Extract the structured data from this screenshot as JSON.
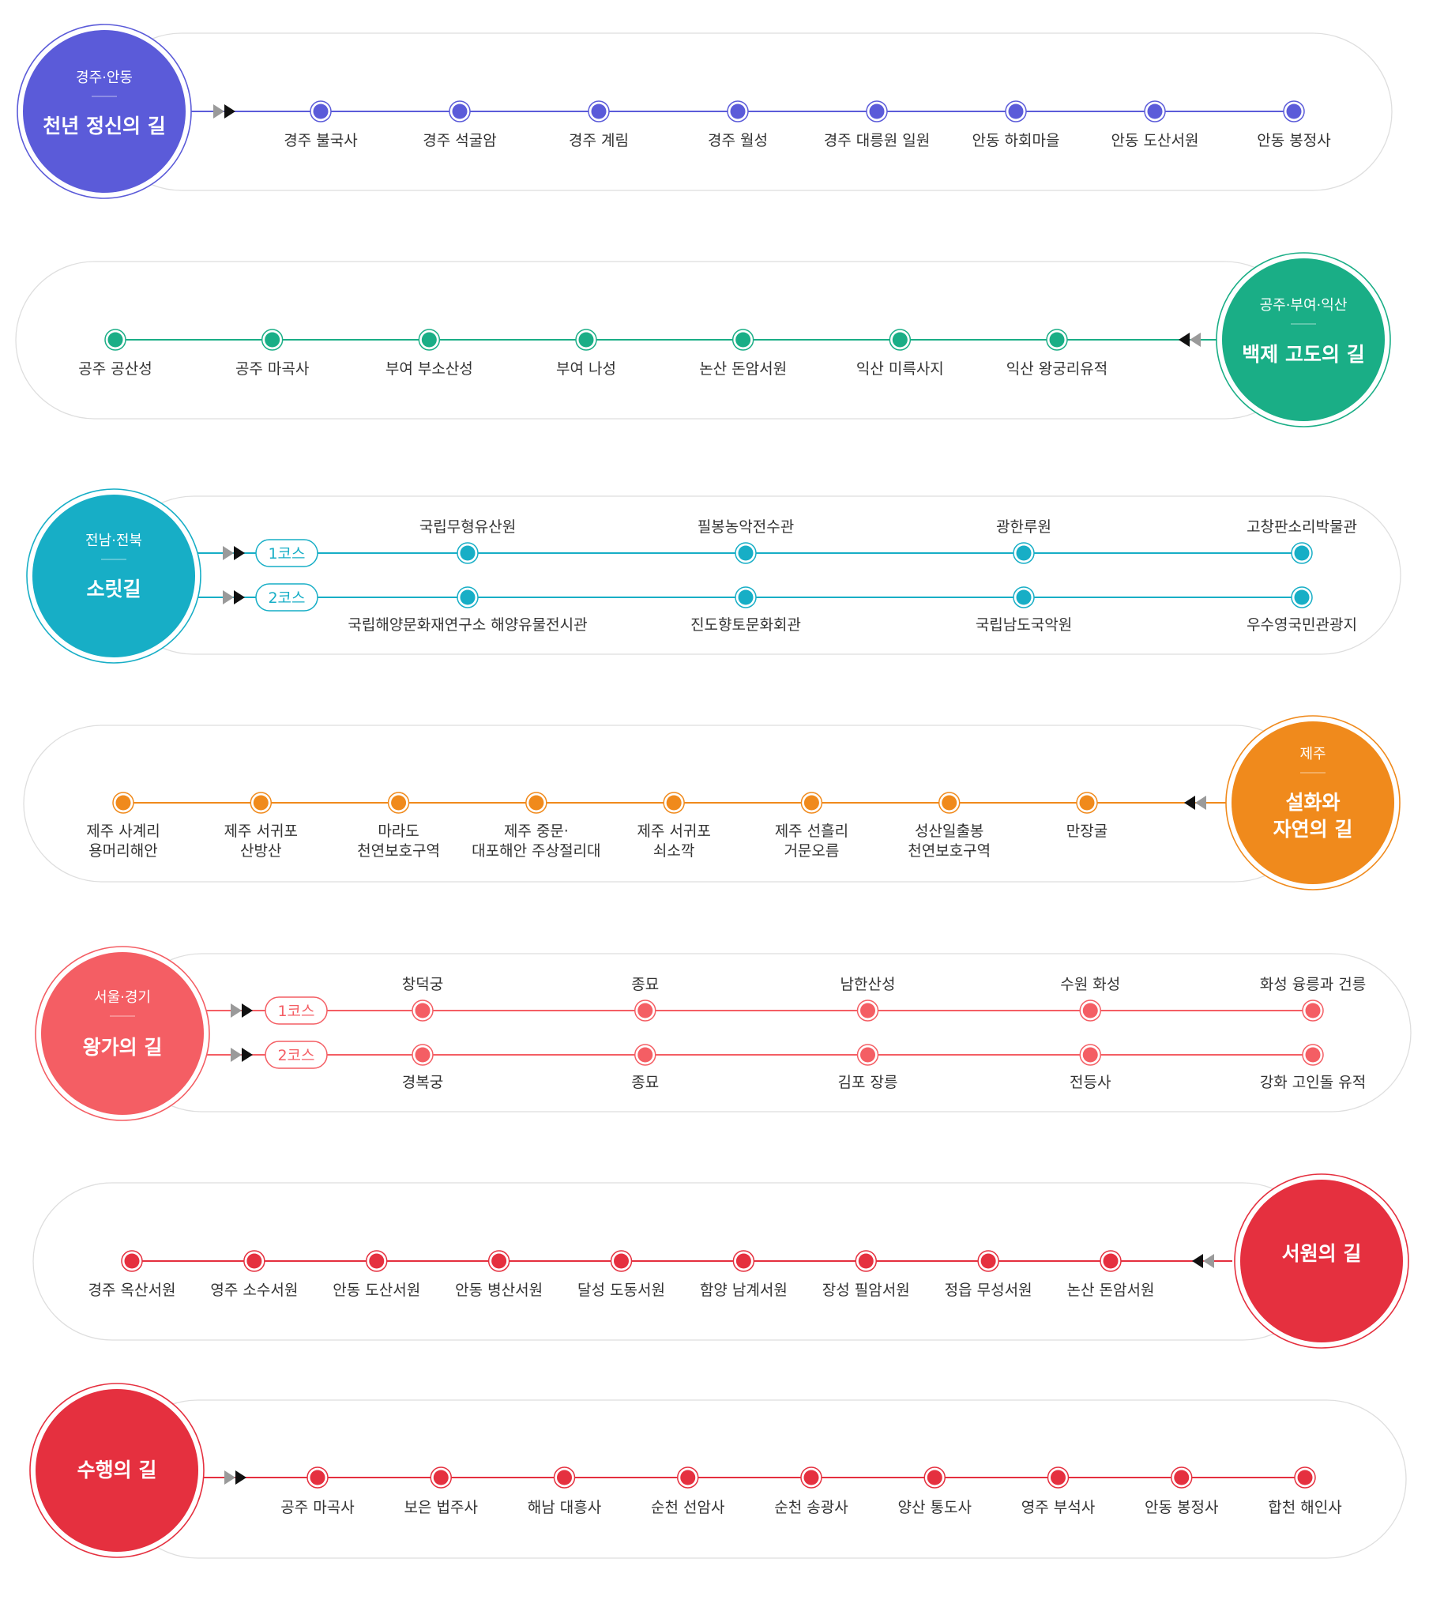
{
  "routes": [
    {
      "region": "경주·안동",
      "title": "천년 정신의 길",
      "color": "#5b5bd9",
      "stops": [
        "경주 불국사",
        "경주 석굴암",
        "경주 계림",
        "경주 월성",
        "경주 대릉원 일원",
        "안동 하회마을",
        "안동 도산서원",
        "안동 봉정사"
      ]
    },
    {
      "region": "공주·부여·익산",
      "title": "백제 고도의 길",
      "color": "#1aae86",
      "stops": [
        "공주 공산성",
        "공주 마곡사",
        "부여 부소산성",
        "부여 나성",
        "논산 돈암서원",
        "익산 미륵사지",
        "익산 왕궁리유적"
      ]
    },
    {
      "region": "전남·전북",
      "title": "소릿길",
      "color": "#17aec6",
      "course1_label": "1코스",
      "course2_label": "2코스",
      "course1": [
        "국립무형유산원",
        "필봉농악전수관",
        "광한루원",
        "고창판소리박물관"
      ],
      "course2": [
        "국립해양문화재연구소 해양유물전시관",
        "진도향토문화회관",
        "국립남도국악원",
        "우수영국민관광지"
      ]
    },
    {
      "region": "제주",
      "title": "설화와 자연의 길",
      "title_lines": [
        "설화와",
        "자연의 길"
      ],
      "color": "#f08a1c",
      "stops": [
        [
          "제주 사계리",
          "용머리해안"
        ],
        [
          "제주 서귀포",
          "산방산"
        ],
        [
          "마라도",
          "천연보호구역"
        ],
        [
          "제주 중문·",
          "대포해안 주상절리대"
        ],
        [
          "제주 서귀포",
          "쇠소깍"
        ],
        [
          "제주 선흘리",
          "거문오름"
        ],
        [
          "성산일출봉",
          "천연보호구역"
        ],
        [
          "만장굴"
        ]
      ]
    },
    {
      "region": "서울·경기",
      "title": "왕가의 길",
      "color": "#f45e64",
      "course1_label": "1코스",
      "course2_label": "2코스",
      "course1": [
        "창덕궁",
        "종묘",
        "남한산성",
        "수원 화성",
        "화성 융릉과 건릉"
      ],
      "course2": [
        "경복궁",
        "종묘",
        "김포 장릉",
        "전등사",
        "강화 고인돌 유적"
      ]
    },
    {
      "title": "서원의 길",
      "color": "#e5303f",
      "stops": [
        "경주 옥산서원",
        "영주 소수서원",
        "안동 도산서원",
        "안동 병산서원",
        "달성 도동서원",
        "함양 남계서원",
        "장성 필암서원",
        "정읍 무성서원",
        "논산 돈암서원"
      ]
    },
    {
      "title": "수행의 길",
      "color": "#e5303f",
      "stops": [
        "공주 마곡사",
        "보은 법주사",
        "해남 대흥사",
        "순천 선암사",
        "순천 송광사",
        "양산 통도사",
        "영주 부석사",
        "안동 봉정사",
        "합천 해인사"
      ]
    }
  ]
}
